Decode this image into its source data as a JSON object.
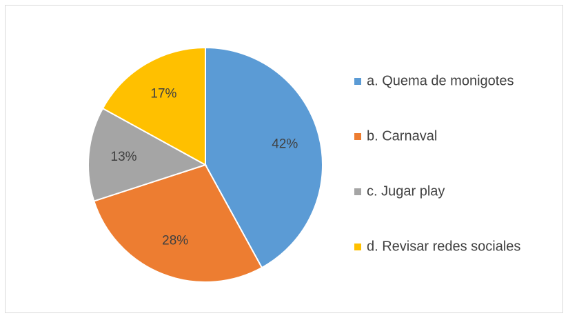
{
  "chart_data": {
    "type": "pie",
    "categories": [
      "a. Quema de monigotes",
      "b. Carnaval",
      "c. Jugar play",
      "d. Revisar redes sociales"
    ],
    "values": [
      42,
      28,
      13,
      17
    ],
    "value_labels": [
      "42%",
      "28%",
      "13%",
      "17%"
    ],
    "colors": [
      "#5b9bd5",
      "#ed7d31",
      "#a5a5a5",
      "#ffc000"
    ],
    "legend": "right"
  }
}
